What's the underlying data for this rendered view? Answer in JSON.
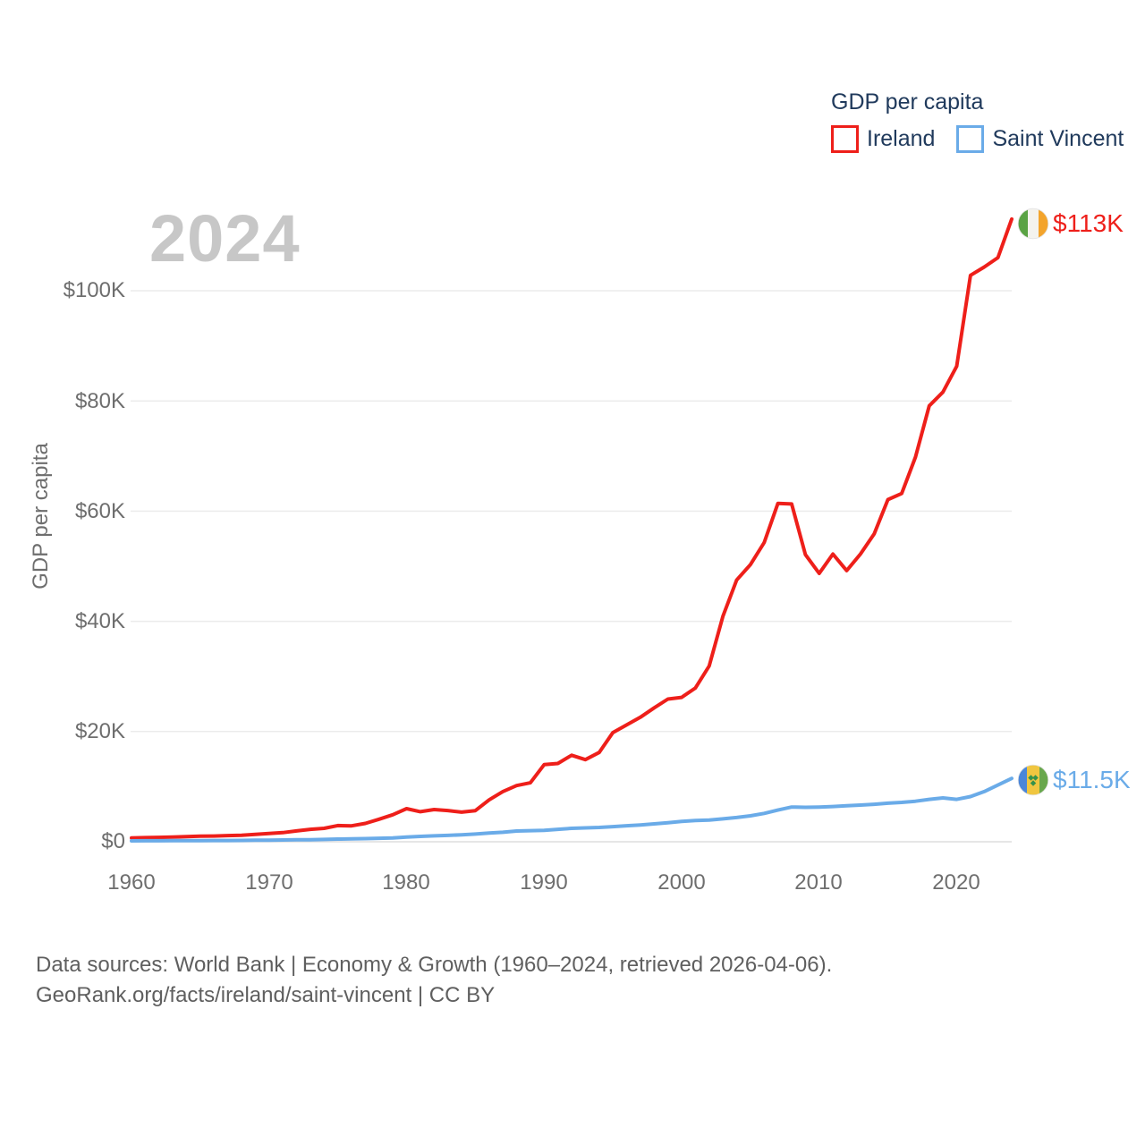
{
  "legend": {
    "title": "GDP per capita",
    "items": [
      {
        "label": "Ireland"
      },
      {
        "label": "Saint Vincent"
      }
    ]
  },
  "watermark": "2024",
  "chart_data": {
    "type": "line",
    "title": "GDP per capita",
    "xlabel": "",
    "ylabel": "GDP per capita",
    "x_start": 1960,
    "x_end": 2024,
    "x_ticks": [
      "1960",
      "1970",
      "1980",
      "1990",
      "2000",
      "2010",
      "2020"
    ],
    "y_ticks": [
      {
        "label": "$0",
        "value": 0
      },
      {
        "label": "$20K",
        "value": 20
      },
      {
        "label": "$40K",
        "value": 40
      },
      {
        "label": "$60K",
        "value": 60
      },
      {
        "label": "$80K",
        "value": 80
      },
      {
        "label": "$100K",
        "value": 100
      }
    ],
    "ylim": [
      0,
      116
    ],
    "grid": "horizontal",
    "legend_position": "top-right",
    "units": "USD thousands",
    "series": [
      {
        "name": "Ireland",
        "color": "#ee1f1a",
        "end_label": "$113K",
        "flag_icon": "ireland-flag",
        "values": [
          0.69,
          0.74,
          0.8,
          0.85,
          0.94,
          1.0,
          1.04,
          1.12,
          1.18,
          1.33,
          1.49,
          1.66,
          1.96,
          2.26,
          2.43,
          2.94,
          2.89,
          3.33,
          4.09,
          4.9,
          6.0,
          5.46,
          5.85,
          5.67,
          5.38,
          5.65,
          7.6,
          9.1,
          10.2,
          10.7,
          14.0,
          14.2,
          15.7,
          14.9,
          16.2,
          19.8,
          21.2,
          22.6,
          24.3,
          25.9,
          26.2,
          27.9,
          31.9,
          40.9,
          47.5,
          50.3,
          54.3,
          61.4,
          61.3,
          52.1,
          48.7,
          52.2,
          49.2,
          52.2,
          55.9,
          62.1,
          63.2,
          69.8,
          79.1,
          81.6,
          86.3,
          102.8,
          104.3,
          106.0,
          113.0
        ]
      },
      {
        "name": "Saint Vincent",
        "color": "#6aabe8",
        "end_label": "$11.5K",
        "flag_icon": "saint-vincent-flag",
        "values": [
          0.17,
          0.18,
          0.18,
          0.19,
          0.2,
          0.21,
          0.22,
          0.23,
          0.25,
          0.27,
          0.29,
          0.32,
          0.35,
          0.38,
          0.43,
          0.48,
          0.52,
          0.57,
          0.63,
          0.7,
          0.86,
          0.97,
          1.07,
          1.15,
          1.27,
          1.4,
          1.57,
          1.72,
          1.94,
          2.02,
          2.08,
          2.26,
          2.44,
          2.52,
          2.6,
          2.75,
          2.9,
          3.05,
          3.25,
          3.45,
          3.7,
          3.85,
          3.95,
          4.15,
          4.4,
          4.7,
          5.15,
          5.75,
          6.3,
          6.25,
          6.3,
          6.4,
          6.52,
          6.65,
          6.8,
          7.0,
          7.15,
          7.35,
          7.7,
          7.95,
          7.7,
          8.2,
          9.1,
          10.3,
          11.5
        ]
      }
    ]
  },
  "footer": {
    "line1": "Data sources: World Bank | Economy & Growth (1960–2024, retrieved 2026-04-06).",
    "line2": "GeoRank.org/facts/ireland/saint-vincent | CC BY"
  }
}
